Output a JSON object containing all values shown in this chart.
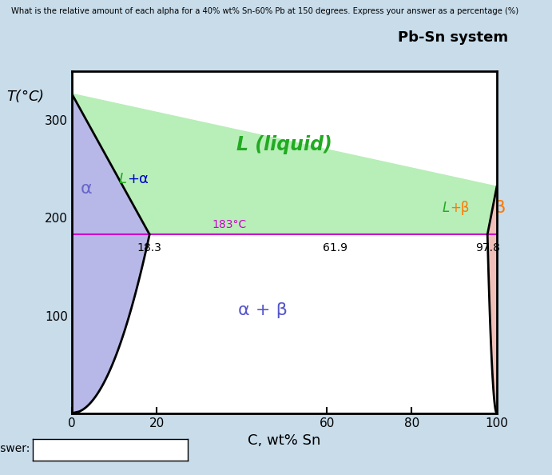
{
  "title": "Pb-Sn system",
  "question": "What is the relative amount of each alpha for a 40% wt% Sn-60% Pb at 150 degrees. Express your answer as a percentage (%)",
  "xlabel": "C, wt% Sn",
  "ylabel": "T(°C)",
  "xlim": [
    0,
    100
  ],
  "ylim": [
    0,
    350
  ],
  "xticks": [
    0,
    20,
    60,
    80,
    100
  ],
  "yticks": [
    100,
    200,
    300
  ],
  "bg_color": "#c8dcea",
  "plot_bg": "#ffffff",
  "T_eut": 183,
  "C_eut": 61.9,
  "C_alpha": 18.3,
  "C_beta": 97.8,
  "T_Pb_melt": 327,
  "T_Sn_melt": 232,
  "color_liquid": "#b8eeb8",
  "color_alpha": "#b8b8e8",
  "color_beta": "#f0c0b8",
  "color_white": "#ffffff",
  "color_eutectic_line": "#cc00cc",
  "color_boundary": "#000000",
  "label_L": "L (liquid)",
  "label_L_color": "#22aa22",
  "label_La_L": "L",
  "label_La_plus": "+",
  "label_La_alpha": "α",
  "label_La_color_L": "#22aa22",
  "label_La_color_alpha": "#0000cc",
  "label_Lb_L": "L",
  "label_Lb_plus": "+β",
  "label_Lb_color_L": "#22aa22",
  "label_Lb_color_beta": "#ff7700",
  "label_alpha": "α",
  "label_alpha_color": "#6666cc",
  "label_ab_alpha": "α",
  "label_ab_plus": " + ",
  "label_ab_beta": "β",
  "label_ab_color_alpha": "#5555cc",
  "label_ab_color_beta": "#ff7700",
  "label_beta": "β",
  "label_beta_color": "#ff7700",
  "label_183": "183°C",
  "label_183_color": "#cc00cc",
  "label_18_3": "18.3",
  "label_61_9": "61.9",
  "label_97_8": "97.8",
  "answer_label": "Answer:"
}
